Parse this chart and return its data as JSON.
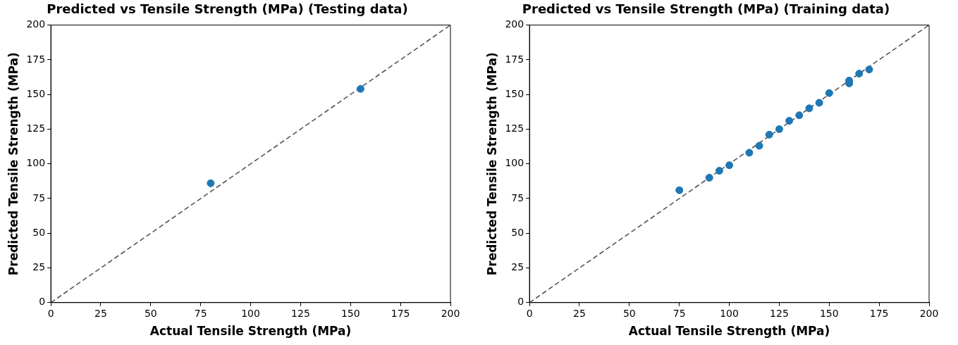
{
  "chart_data": [
    {
      "type": "scatter",
      "title": "Predicted vs Tensile Strength (MPa) (Testing data)",
      "xlabel": "Actual Tensile Strength (MPa)",
      "ylabel": "Predicted Tensile Strength (MPa)",
      "xlim": [
        0,
        200
      ],
      "ylim": [
        0,
        200
      ],
      "xticks": [
        0,
        25,
        50,
        75,
        100,
        125,
        150,
        175,
        200
      ],
      "yticks": [
        0,
        25,
        50,
        75,
        100,
        125,
        150,
        175,
        200
      ],
      "grid": false,
      "legend": false,
      "series": [
        {
          "type": "scatter",
          "color": "#1f77b4",
          "marker": "circle",
          "x": [
            80,
            155
          ],
          "values": [
            86,
            154
          ]
        },
        {
          "type": "line",
          "color": "#555555",
          "line_style": "dashed",
          "marker": "none",
          "x": [
            0,
            200
          ],
          "values": [
            0,
            200
          ]
        }
      ]
    },
    {
      "type": "scatter",
      "title": "Predicted vs Tensile Strength (MPa) (Training data)",
      "xlabel": "Actual Tensile Strength (MPa)",
      "ylabel": "Predicted Tensile Strength (MPa)",
      "xlim": [
        0,
        200
      ],
      "ylim": [
        0,
        200
      ],
      "xticks": [
        0,
        25,
        50,
        75,
        100,
        125,
        150,
        175,
        200
      ],
      "yticks": [
        0,
        25,
        50,
        75,
        100,
        125,
        150,
        175,
        200
      ],
      "grid": false,
      "legend": false,
      "series": [
        {
          "type": "scatter",
          "color": "#1f77b4",
          "marker": "circle",
          "x": [
            75,
            90,
            95,
            100,
            110,
            115,
            120,
            125,
            130,
            135,
            140,
            145,
            150,
            160,
            160,
            165,
            170
          ],
          "values": [
            81,
            90,
            95,
            99,
            108,
            113,
            121,
            125,
            131,
            135,
            140,
            144,
            151,
            158,
            160,
            165,
            168
          ]
        },
        {
          "type": "line",
          "color": "#555555",
          "line_style": "dashed",
          "marker": "none",
          "x": [
            0,
            200
          ],
          "values": [
            0,
            200
          ]
        }
      ]
    }
  ]
}
